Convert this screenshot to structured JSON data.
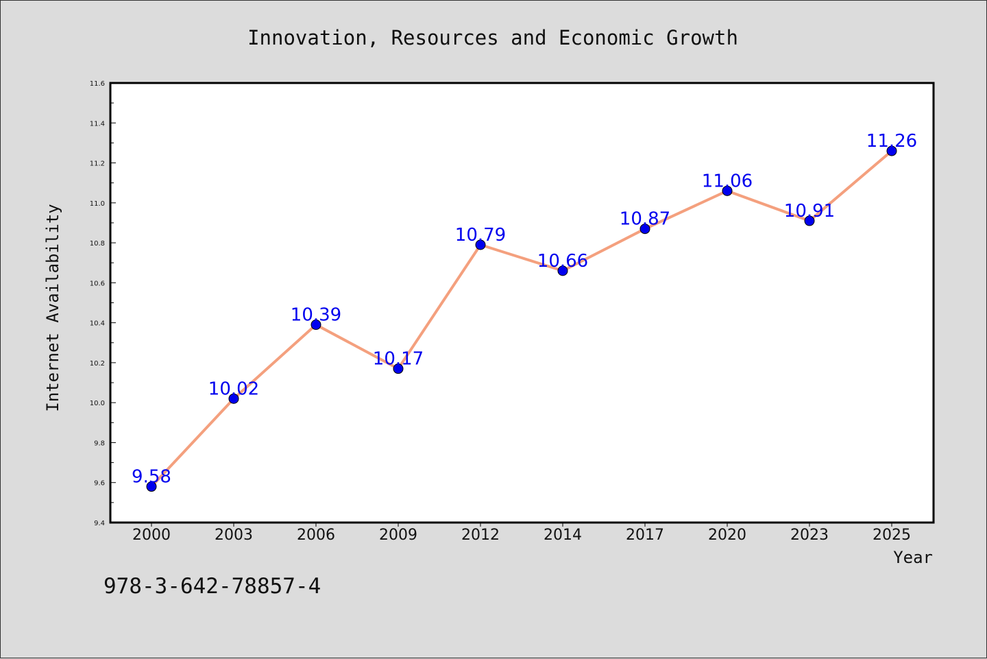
{
  "footer": {
    "isbn": "978-3-642-78857-4"
  },
  "colors": {
    "line": "#f4a07e",
    "marker": "#0000ee",
    "label": "#0000ee",
    "background": "#dcdcdc",
    "plot_bg": "#ffffff"
  },
  "chart_data": {
    "type": "line",
    "title": "Innovation, Resources and Economic Growth",
    "xlabel": "Year",
    "ylabel": "Internet Availability",
    "categories": [
      "2000",
      "2003",
      "2006",
      "2009",
      "2012",
      "2014",
      "2017",
      "2020",
      "2023",
      "2025"
    ],
    "series": [
      {
        "values": [
          9.58,
          10.02,
          10.39,
          10.17,
          10.79,
          10.66,
          10.87,
          11.06,
          10.91,
          11.26
        ]
      }
    ],
    "data_labels": [
      "9.58",
      "10.02",
      "10.39",
      "10.17",
      "10.79",
      "10.66",
      "10.87",
      "11.06",
      "10.91",
      "11.26"
    ],
    "ylim": [
      9.4,
      11.6
    ],
    "yticks": [
      "9.4",
      "9.6",
      "9.8",
      "10.0",
      "10.2",
      "10.4",
      "10.6",
      "10.8",
      "11.0",
      "11.2",
      "11.4",
      "11.6"
    ],
    "grid": false,
    "legend": "none"
  }
}
